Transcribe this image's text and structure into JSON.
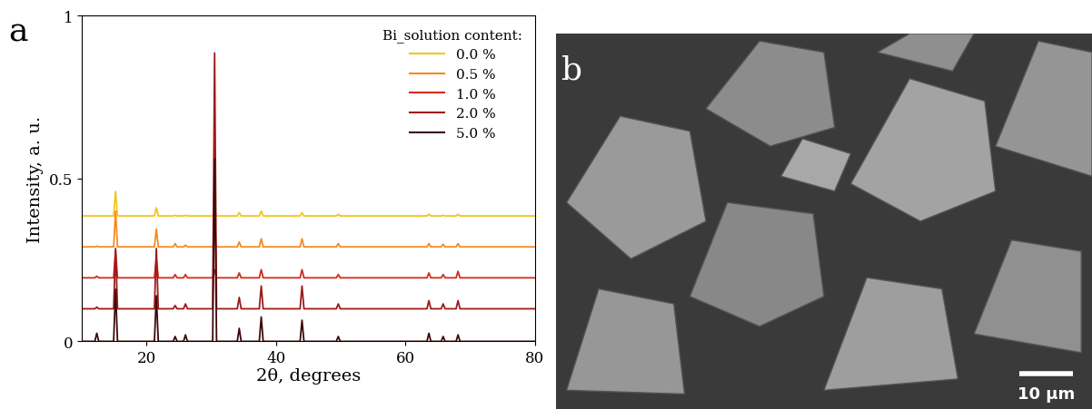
{
  "chart_data": [
    {
      "type": "line",
      "panel_label": "a",
      "x_label": "2θ, degrees",
      "y_label": "Intensity, a. u.",
      "legend_title": "Bi_solution content:",
      "legend": "upper right",
      "xlim": [
        10,
        80
      ],
      "xticks": [
        20,
        40,
        60,
        80
      ],
      "ylim": [
        0,
        1
      ],
      "yticks": [
        0,
        0.5,
        1
      ],
      "x": [
        10,
        12.0,
        12.3,
        12.6,
        14.9,
        15.2,
        15.5,
        21.2,
        21.5,
        21.8,
        24.1,
        24.4,
        24.7,
        25.7,
        26.0,
        26.3,
        30.2,
        30.5,
        30.8,
        34.0,
        34.3,
        34.6,
        37.4,
        37.7,
        38.0,
        43.7,
        44.0,
        44.3,
        49.3,
        49.6,
        49.9,
        63.3,
        63.6,
        63.9,
        65.5,
        65.8,
        66.1,
        67.8,
        68.1,
        68.4,
        80
      ],
      "series": [
        {
          "name": "0.0 %",
          "color": "#f5c518",
          "values": [
            0.385,
            0.385,
            0.385,
            0.385,
            0.385,
            0.46,
            0.385,
            0.385,
            0.41,
            0.385,
            0.385,
            0.387,
            0.385,
            0.385,
            0.387,
            0.385,
            0.385,
            0.4,
            0.385,
            0.385,
            0.395,
            0.385,
            0.385,
            0.4,
            0.385,
            0.385,
            0.395,
            0.385,
            0.385,
            0.39,
            0.385,
            0.385,
            0.39,
            0.385,
            0.385,
            0.387,
            0.385,
            0.385,
            0.39,
            0.385,
            0.385
          ]
        },
        {
          "name": "0.5 %",
          "color": "#f58a1f",
          "values": [
            0.29,
            0.29,
            0.292,
            0.29,
            0.29,
            0.4,
            0.29,
            0.29,
            0.345,
            0.29,
            0.29,
            0.3,
            0.29,
            0.29,
            0.295,
            0.29,
            0.29,
            0.31,
            0.29,
            0.29,
            0.305,
            0.29,
            0.29,
            0.315,
            0.29,
            0.29,
            0.315,
            0.29,
            0.29,
            0.3,
            0.29,
            0.29,
            0.3,
            0.29,
            0.29,
            0.298,
            0.29,
            0.29,
            0.3,
            0.29,
            0.29
          ]
        },
        {
          "name": "1.0 %",
          "color": "#d42a1e",
          "values": [
            0.195,
            0.195,
            0.2,
            0.195,
            0.195,
            0.28,
            0.195,
            0.195,
            0.255,
            0.195,
            0.195,
            0.205,
            0.195,
            0.195,
            0.205,
            0.195,
            0.195,
            0.22,
            0.195,
            0.195,
            0.21,
            0.195,
            0.195,
            0.22,
            0.195,
            0.195,
            0.22,
            0.195,
            0.195,
            0.205,
            0.195,
            0.195,
            0.21,
            0.195,
            0.195,
            0.205,
            0.195,
            0.195,
            0.215,
            0.195,
            0.195
          ]
        },
        {
          "name": "2.0 %",
          "color": "#9e1a1a",
          "values": [
            0.1,
            0.1,
            0.105,
            0.1,
            0.1,
            0.285,
            0.1,
            0.1,
            0.285,
            0.1,
            0.1,
            0.11,
            0.1,
            0.1,
            0.115,
            0.1,
            0.1,
            0.885,
            0.1,
            0.1,
            0.135,
            0.1,
            0.1,
            0.17,
            0.1,
            0.1,
            0.17,
            0.1,
            0.1,
            0.115,
            0.1,
            0.1,
            0.125,
            0.1,
            0.1,
            0.115,
            0.1,
            0.1,
            0.125,
            0.1,
            0.1
          ]
        },
        {
          "name": "5.0 %",
          "color": "#3d0a0a",
          "values": [
            0.0,
            0.0,
            0.025,
            0.0,
            0.0,
            0.16,
            0.0,
            0.0,
            0.14,
            0.0,
            0.0,
            0.015,
            0.0,
            0.0,
            0.02,
            0.0,
            0.0,
            0.56,
            0.0,
            0.0,
            0.04,
            0.0,
            0.0,
            0.075,
            0.0,
            0.0,
            0.065,
            0.0,
            0.0,
            0.015,
            0.0,
            0.0,
            0.025,
            0.0,
            0.0,
            0.015,
            0.0,
            0.0,
            0.02,
            0.0,
            0.0
          ]
        }
      ]
    },
    {
      "type": "image",
      "panel_label": "b",
      "scale_bar": "10 µm"
    }
  ]
}
